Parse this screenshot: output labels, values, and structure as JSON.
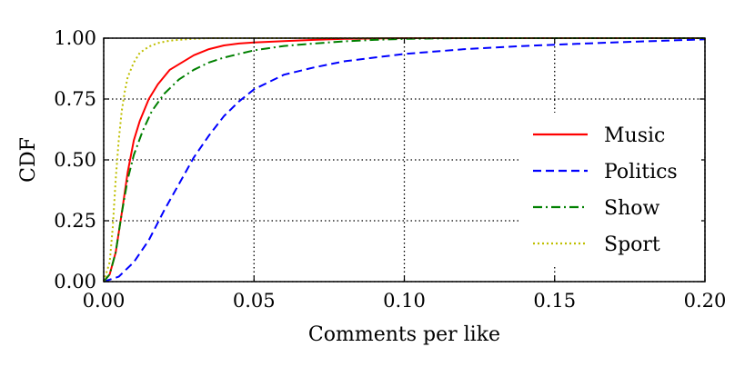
{
  "chart_data": {
    "type": "line",
    "xlabel": "Comments per like",
    "ylabel": "CDF",
    "xlim": [
      0.0,
      0.2
    ],
    "ylim": [
      0.0,
      1.0
    ],
    "xticks": [
      "0.00",
      "0.05",
      "0.10",
      "0.15",
      "0.20"
    ],
    "yticks": [
      "0.00",
      "0.25",
      "0.50",
      "0.75",
      "1.00"
    ],
    "grid": true,
    "grid_style": "dotted",
    "legend_position": "center-right",
    "series": [
      {
        "name": "Music",
        "color": "#ff0000",
        "dash": "solid",
        "x": [
          0,
          0.002,
          0.004,
          0.006,
          0.008,
          0.01,
          0.012,
          0.015,
          0.018,
          0.022,
          0.026,
          0.03,
          0.035,
          0.04,
          0.045,
          0.05,
          0.06,
          0.07,
          0.08,
          0.1,
          0.15,
          0.2
        ],
        "y": [
          0,
          0.03,
          0.12,
          0.28,
          0.45,
          0.58,
          0.66,
          0.75,
          0.81,
          0.87,
          0.9,
          0.93,
          0.955,
          0.97,
          0.978,
          0.982,
          0.988,
          0.993,
          0.997,
          1.0,
          1.0,
          1.0
        ]
      },
      {
        "name": "Politics",
        "color": "#0000ff",
        "dash": "dashed",
        "x": [
          0,
          0.005,
          0.01,
          0.015,
          0.02,
          0.025,
          0.03,
          0.035,
          0.04,
          0.045,
          0.05,
          0.055,
          0.06,
          0.07,
          0.08,
          0.09,
          0.1,
          0.12,
          0.14,
          0.16,
          0.18,
          0.2
        ],
        "y": [
          0,
          0.02,
          0.08,
          0.17,
          0.29,
          0.4,
          0.51,
          0.6,
          0.68,
          0.74,
          0.79,
          0.82,
          0.85,
          0.88,
          0.905,
          0.92,
          0.935,
          0.955,
          0.968,
          0.978,
          0.987,
          0.995
        ]
      },
      {
        "name": "Show",
        "color": "#008000",
        "dash": "dashdot",
        "x": [
          0,
          0.002,
          0.004,
          0.006,
          0.008,
          0.01,
          0.013,
          0.016,
          0.02,
          0.025,
          0.03,
          0.035,
          0.04,
          0.05,
          0.06,
          0.07,
          0.08,
          0.09,
          0.1,
          0.12,
          0.15,
          0.2
        ],
        "y": [
          0,
          0.03,
          0.12,
          0.28,
          0.42,
          0.52,
          0.62,
          0.7,
          0.77,
          0.83,
          0.87,
          0.9,
          0.92,
          0.95,
          0.968,
          0.978,
          0.987,
          0.993,
          0.997,
          1.0,
          1.0,
          1.0
        ]
      },
      {
        "name": "Sport",
        "color": "#bfbf00",
        "dash": "dotted",
        "x": [
          0,
          0.002,
          0.003,
          0.004,
          0.005,
          0.006,
          0.007,
          0.008,
          0.01,
          0.012,
          0.015,
          0.018,
          0.022,
          0.028,
          0.035,
          0.05,
          0.08,
          0.2
        ],
        "y": [
          0,
          0.08,
          0.22,
          0.42,
          0.58,
          0.7,
          0.78,
          0.84,
          0.9,
          0.94,
          0.965,
          0.98,
          0.99,
          0.996,
          1.0,
          1.0,
          1.0,
          1.0
        ]
      }
    ]
  }
}
